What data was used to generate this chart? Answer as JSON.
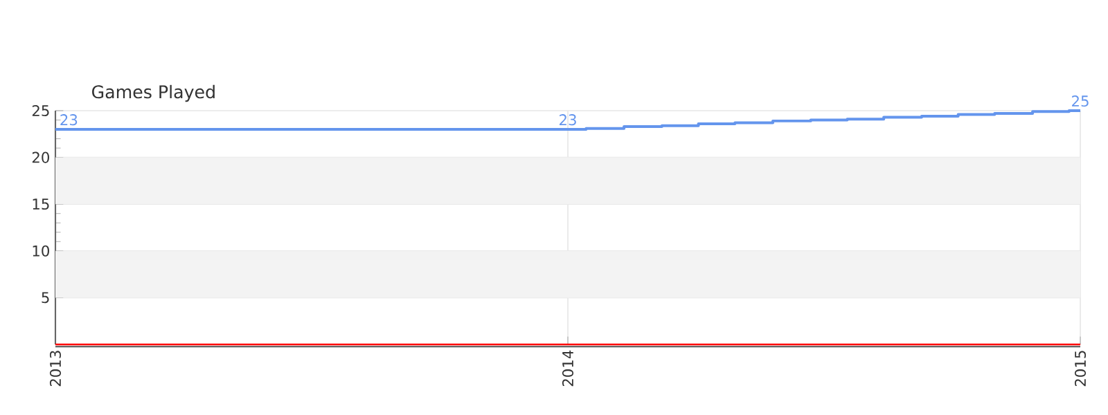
{
  "chart_data": {
    "type": "step",
    "title": "Games Played",
    "x": [
      "2013-01-01",
      "2014-01-01",
      "2014-01-14",
      "2014-02-10",
      "2014-03-09",
      "2014-04-04",
      "2014-04-30",
      "2014-05-27",
      "2014-06-23",
      "2014-07-19",
      "2014-08-14",
      "2014-09-10",
      "2014-10-06",
      "2014-11-01",
      "2014-11-28",
      "2014-12-24",
      "2015-01-01"
    ],
    "series": [
      {
        "color": "#6495ed",
        "values": [
          23,
          23,
          23.1,
          23.3,
          23.4,
          23.6,
          23.7,
          23.9,
          24.0,
          24.1,
          24.3,
          24.4,
          24.6,
          24.7,
          24.9,
          25.0,
          25.0
        ],
        "value_labels": [
          "23",
          "23",
          null,
          null,
          null,
          null,
          null,
          null,
          null,
          null,
          null,
          null,
          null,
          null,
          null,
          null,
          "25"
        ]
      }
    ],
    "xlim": [
      "2013-01-01",
      "2015-01-01"
    ],
    "xticks": [
      {
        "value": "2013-01-01",
        "label": "2013"
      },
      {
        "value": "2014-01-01",
        "label": "2014"
      },
      {
        "value": "2015-01-01",
        "label": "2015"
      }
    ],
    "ylim": [
      0,
      25
    ],
    "yticks": [
      5,
      10,
      15,
      20,
      25
    ],
    "grid": true,
    "bands": [
      {
        "axis": "y",
        "from": 5,
        "to": 10,
        "color": "#f3f3f3"
      },
      {
        "axis": "y",
        "from": 15,
        "to": 20,
        "color": "#f3f3f3"
      }
    ],
    "ref_lines": [
      {
        "axis": "y",
        "value": 0,
        "color": "#ff0000"
      }
    ]
  }
}
